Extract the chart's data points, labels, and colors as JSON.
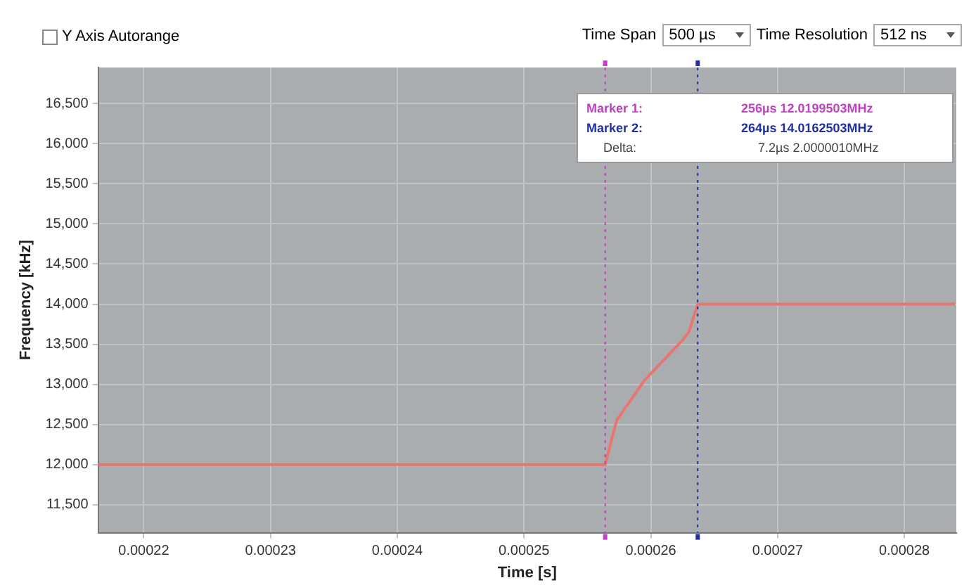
{
  "chart_data": {
    "type": "line",
    "xlabel": "Time [s]",
    "ylabel": "Frequency [kHz]",
    "x": [
      0.0002164,
      0.0002564,
      0.0002573,
      0.0002595,
      0.0002625,
      0.000263,
      0.0002637,
      0.000284
    ],
    "series": [
      {
        "color": "#e8766f",
        "values": [
          12000,
          12000,
          12550,
          13050,
          13550,
          13650,
          14000,
          14000
        ]
      }
    ],
    "xlim": [
      0.0002164,
      0.0002841
    ],
    "xticks": [
      0.00022,
      0.00023,
      0.00024,
      0.00025,
      0.00026,
      0.00027,
      0.00028
    ],
    "ylim": [
      11150,
      16950
    ],
    "yticks": [
      {
        "value": 11500,
        "label": "11,500"
      },
      {
        "value": 12000,
        "label": "12,000"
      },
      {
        "value": 12500,
        "label": "12,500"
      },
      {
        "value": 13000,
        "label": "13,000"
      },
      {
        "value": 13500,
        "label": "13,500"
      },
      {
        "value": 14000,
        "label": "14,000"
      },
      {
        "value": 14500,
        "label": "14,500"
      },
      {
        "value": 15000,
        "label": "15,000"
      },
      {
        "value": 15500,
        "label": "15,500"
      },
      {
        "value": 16000,
        "label": "16,000"
      },
      {
        "value": 16500,
        "label": "16,500"
      }
    ],
    "ref_lines": [
      {
        "axis": "x",
        "value": 0.0002564,
        "color": "#c040c0",
        "line_style": "dotted"
      },
      {
        "axis": "x",
        "value": 0.0002637,
        "color": "#2030a0",
        "line_style": "dotted"
      }
    ],
    "grid": true,
    "legend": false,
    "marker": "none",
    "line_style": "solid",
    "annotations": [
      "Y Axis Autorange",
      "Time Span",
      "500 µs",
      "Time Resolution",
      "512 ns",
      "Marker 1:",
      "256µs 12.0199503MHz",
      "Marker 2:",
      "264µs 14.0162503MHz",
      "Delta:",
      "7.2µs 2.0000010MHz"
    ]
  }
}
